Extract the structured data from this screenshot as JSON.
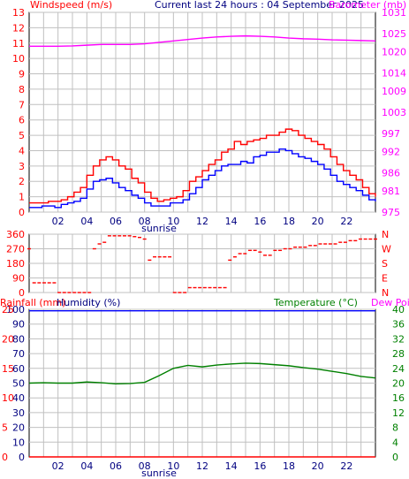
{
  "header": {
    "left_label": "Windspeed (m/s)",
    "center_label": "Current last 24 hours : 04 September 2025",
    "right_label": "Barometer (mb)"
  },
  "rain_header": {
    "rainfall_label": "Rainfall (mm)",
    "humidity_label": "Humidity (%)",
    "temperature_label": "Temperature (°C)",
    "dewpoint_label": "Dew Point"
  },
  "time_axis": {
    "ticks": [
      "02",
      "04",
      "06",
      "08",
      "10",
      "12",
      "14",
      "16",
      "18",
      "20",
      "22"
    ],
    "sunrise_label": "sunrise"
  },
  "colors": {
    "windspeed": "#ff0000",
    "gust": "#ff0000",
    "avg_wind": "#0000ff",
    "barometer": "#ff00ff",
    "winddir": "#ff0000",
    "temperature": "#008000",
    "humidity": "#0000ff",
    "rainfall": "#ff0000",
    "dewpoint": "#ff00ff",
    "grid": "#c0c0c0"
  },
  "chart_data": [
    {
      "type": "line",
      "series": [
        {
          "name": "Windspeed",
          "values": [
            0.6,
            0.6,
            0.6,
            0.7,
            0.7,
            0.8,
            1,
            1.3,
            1.6,
            2.4,
            3,
            3.4,
            3.6,
            3.4,
            3,
            2.8,
            2.2,
            1.9,
            1.3,
            0.9,
            0.7,
            0.8,
            0.9,
            1,
            1.4,
            2,
            2.3,
            2.7,
            3.1,
            3.4,
            3.9,
            4.1,
            4.6,
            4.4,
            4.6,
            4.7,
            4.8,
            5,
            5,
            5.2,
            5.4,
            5.3,
            5,
            4.8,
            4.6,
            4.4,
            4.1,
            3.6,
            3.1,
            2.7,
            2.4,
            2.1,
            1.6,
            1.2,
            1
          ]
        },
        {
          "name": "Average Windspeed",
          "values": [
            0.3,
            0.3,
            0.4,
            0.4,
            0.3,
            0.5,
            0.6,
            0.7,
            0.9,
            1.5,
            2,
            2.1,
            2.2,
            1.9,
            1.6,
            1.4,
            1.1,
            0.9,
            0.6,
            0.4,
            0.4,
            0.4,
            0.6,
            0.6,
            0.8,
            1.2,
            1.6,
            2.1,
            2.4,
            2.7,
            3,
            3.1,
            3.1,
            3.3,
            3.2,
            3.6,
            3.7,
            3.9,
            3.9,
            4.1,
            4,
            3.8,
            3.6,
            3.5,
            3.3,
            3.1,
            2.8,
            2.4,
            2,
            1.8,
            1.6,
            1.4,
            1.1,
            0.8,
            0.7
          ]
        },
        {
          "name": "Barometer",
          "values": [
            1021.5,
            1021.5,
            1021.5,
            1021.6,
            1021.8,
            1022,
            1022,
            1022,
            1022.2,
            1022.6,
            1023,
            1023.4,
            1023.8,
            1024.1,
            1024.3,
            1024.4,
            1024.3,
            1024.1,
            1023.8,
            1023.6,
            1023.5,
            1023.3,
            1023.2,
            1023.1,
            1023
          ]
        }
      ],
      "xlim": [
        0,
        24
      ],
      "left_ylim": [
        0,
        13
      ],
      "right_ylim": [
        975,
        1031
      ],
      "left_ticks": [
        0,
        1,
        2,
        3,
        4,
        5,
        6,
        7,
        8,
        9,
        10,
        11,
        12,
        13
      ],
      "right_ticks": [
        975,
        981,
        986,
        992,
        997,
        1003,
        1009,
        1014,
        1020,
        1025,
        1031
      ]
    },
    {
      "type": "scatter",
      "series": [
        {
          "name": "Wind Direction",
          "values": [
            270,
            60,
            60,
            60,
            60,
            60,
            0,
            0,
            0,
            0,
            0,
            0,
            0,
            270,
            300,
            310,
            350,
            350,
            350,
            350,
            350,
            345,
            340,
            330,
            200,
            220,
            220,
            220,
            220,
            0,
            0,
            0,
            30,
            30,
            30,
            30,
            30,
            30,
            30,
            30,
            200,
            220,
            240,
            240,
            260,
            260,
            250,
            230,
            230,
            260,
            260,
            270,
            270,
            280,
            280,
            280,
            290,
            290,
            300,
            300,
            300,
            300,
            310,
            310,
            320,
            320,
            330,
            330,
            330,
            330
          ]
        }
      ],
      "xlim": [
        0,
        24
      ],
      "ylim": [
        0,
        360
      ],
      "left_ticks": [
        0,
        90,
        180,
        270,
        360
      ],
      "right_labels": [
        "N",
        "E",
        "S",
        "W",
        "N"
      ]
    },
    {
      "type": "line",
      "series": [
        {
          "name": "Humidity",
          "values": [
            99,
            99,
            99,
            99,
            99,
            99,
            99,
            99,
            99,
            99,
            99,
            99,
            99,
            99,
            99,
            99,
            99,
            99,
            99,
            99,
            99,
            99,
            99,
            99,
            99
          ]
        },
        {
          "name": "Temperature",
          "values": [
            20,
            20.1,
            20.0,
            20.0,
            20.3,
            20.1,
            19.8,
            19.9,
            20.2,
            22,
            24,
            24.8,
            24.4,
            24.9,
            25.2,
            25.4,
            25.3,
            25.0,
            24.7,
            24.2,
            23.8,
            23.2,
            22.6,
            21.8,
            21.4
          ]
        },
        {
          "name": "Rainfall",
          "values": [
            0,
            0,
            0,
            0,
            0,
            0,
            0,
            0,
            0,
            0,
            0,
            0,
            0,
            0,
            0,
            0,
            0,
            0,
            0,
            0,
            0,
            0,
            0,
            0,
            0
          ]
        }
      ],
      "xlim": [
        0,
        24
      ],
      "left_ticks_humidity": [
        0,
        10,
        20,
        30,
        40,
        50,
        60,
        70,
        80,
        90,
        100
      ],
      "left_ticks_rain": [
        0,
        5,
        10,
        15,
        20,
        25
      ],
      "right_ticks_temp": [
        0,
        4,
        8,
        12,
        16,
        20,
        24,
        28,
        32,
        36,
        40
      ],
      "temp_ylim": [
        0,
        40
      ],
      "humidity_ylim": [
        0,
        100
      ]
    }
  ]
}
